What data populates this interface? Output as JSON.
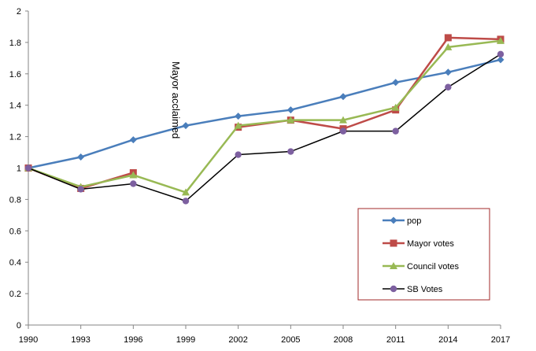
{
  "chart_data": {
    "type": "line",
    "x": [
      "1990",
      "1993",
      "1996",
      "1999",
      "2002",
      "2005",
      "2008",
      "2011",
      "2014",
      "2017"
    ],
    "ylim": [
      0,
      2
    ],
    "yticks": [
      "0",
      "0.2",
      "0.4",
      "0.6",
      "0.8",
      "1",
      "1.2",
      "1.4",
      "1.6",
      "1.8",
      "2"
    ],
    "grid": false,
    "legend_position": "bottom-right",
    "annotation": "Mayor acclaimed",
    "series": [
      {
        "name": "pop",
        "color": "#4a7ebb",
        "marker": "diamond",
        "values": [
          1.0,
          1.07,
          1.18,
          1.27,
          1.33,
          1.37,
          1.455,
          1.545,
          1.61,
          1.69
        ]
      },
      {
        "name": "Mayor votes",
        "color": "#be4b48",
        "marker": "square",
        "values": [
          1.0,
          0.87,
          0.97,
          null,
          1.26,
          1.305,
          1.25,
          1.37,
          1.83,
          1.82
        ]
      },
      {
        "name": "Council votes",
        "color": "#98b954",
        "marker": "triangle",
        "values": [
          1.0,
          0.88,
          0.955,
          0.845,
          1.27,
          1.305,
          1.305,
          1.385,
          1.77,
          1.81
        ]
      },
      {
        "name": "SB Votes",
        "color": "#000000",
        "marker_color": "#7d60a0",
        "marker": "circle",
        "values": [
          1.0,
          0.865,
          0.9,
          0.79,
          1.085,
          1.105,
          1.235,
          1.235,
          1.515,
          1.725
        ]
      }
    ]
  }
}
